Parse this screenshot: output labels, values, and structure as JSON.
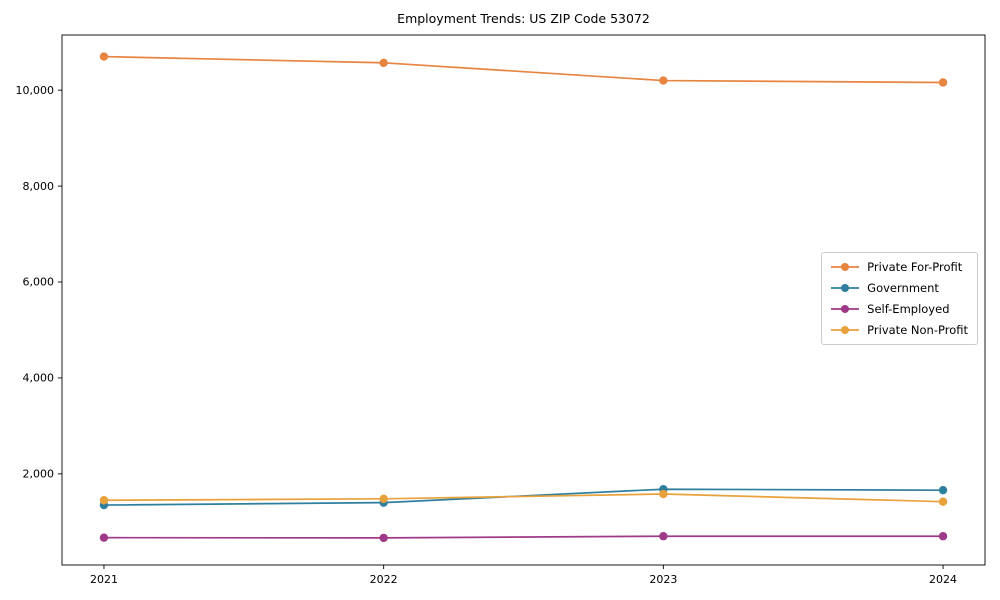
{
  "page": {
    "title": "Employment Trends: US ZIP Code 53072"
  },
  "chart_data": {
    "type": "line",
    "title": "Employment Trends: US ZIP Code 53072",
    "xlabel": "",
    "ylabel": "",
    "grid": false,
    "legend_position": "center-right",
    "x": [
      2021,
      2022,
      2023,
      2024
    ],
    "xtick_labels": [
      "2021",
      "2022",
      "2023",
      "2024"
    ],
    "yticks": [
      {
        "value": 2000,
        "label": "2,000"
      },
      {
        "value": 4000,
        "label": "4,000"
      },
      {
        "value": 6000,
        "label": "6,000"
      },
      {
        "value": 8000,
        "label": "8,000"
      },
      {
        "value": 10000,
        "label": "10,000"
      }
    ],
    "xlim": [
      2020.85,
      2024.15
    ],
    "ylim": [
      100,
      11150
    ],
    "marker": "circle",
    "series": [
      {
        "name": "Private For-Profit",
        "color": "#e78440",
        "values": [
          10700,
          10570,
          10200,
          10160
        ]
      },
      {
        "name": "Government",
        "color": "#2e7f9e",
        "values": [
          1350,
          1400,
          1680,
          1660
        ]
      },
      {
        "name": "Self-Employed",
        "color": "#9e3a87",
        "values": [
          670,
          665,
          700,
          700
        ]
      },
      {
        "name": "Private Non-Profit",
        "color": "#e9a13b",
        "values": [
          1450,
          1480,
          1580,
          1420
        ]
      }
    ]
  }
}
